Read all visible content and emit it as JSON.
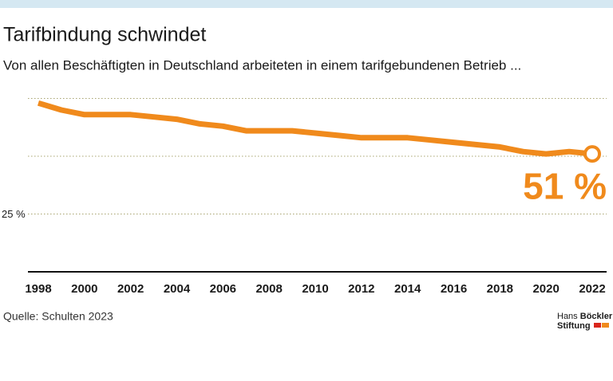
{
  "chart_data": {
    "type": "line",
    "title": "Tarifbindung schwindet",
    "subtitle": "Von allen Beschäftigten in Deutschland arbeiteten in einem tarifgebundenen Betrieb ...",
    "source": "Quelle: Schulten 2023",
    "logo": {
      "line1": "Hans",
      "line1_bold": "Böckler",
      "line2": "Stiftung"
    },
    "x": [
      1998,
      1999,
      2000,
      2001,
      2002,
      2003,
      2004,
      2005,
      2006,
      2007,
      2008,
      2009,
      2010,
      2011,
      2012,
      2013,
      2014,
      2015,
      2016,
      2017,
      2018,
      2019,
      2020,
      2021,
      2022
    ],
    "series": [
      {
        "color": "#f08a1c",
        "values": [
          73,
          70,
          68,
          68,
          68,
          67,
          66,
          64,
          63,
          61,
          61,
          61,
          60,
          59,
          58,
          58,
          58,
          57,
          56,
          55,
          54,
          52,
          51,
          52,
          51
        ],
        "value_labels": [
          null,
          null,
          null,
          null,
          null,
          null,
          null,
          null,
          null,
          null,
          null,
          null,
          null,
          null,
          null,
          null,
          null,
          null,
          null,
          null,
          null,
          null,
          null,
          null,
          "51 %"
        ]
      }
    ],
    "xlim": [
      1998,
      2022
    ],
    "xticks": [
      1998,
      2000,
      2002,
      2004,
      2006,
      2008,
      2010,
      2012,
      2014,
      2016,
      2018,
      2020,
      2022
    ],
    "ylim": [
      0,
      80
    ],
    "yticks": [
      {
        "value": 25,
        "label": "25 %"
      },
      {
        "value": 50,
        "label": null
      },
      {
        "value": 75,
        "label": null
      }
    ],
    "grid": true
  }
}
